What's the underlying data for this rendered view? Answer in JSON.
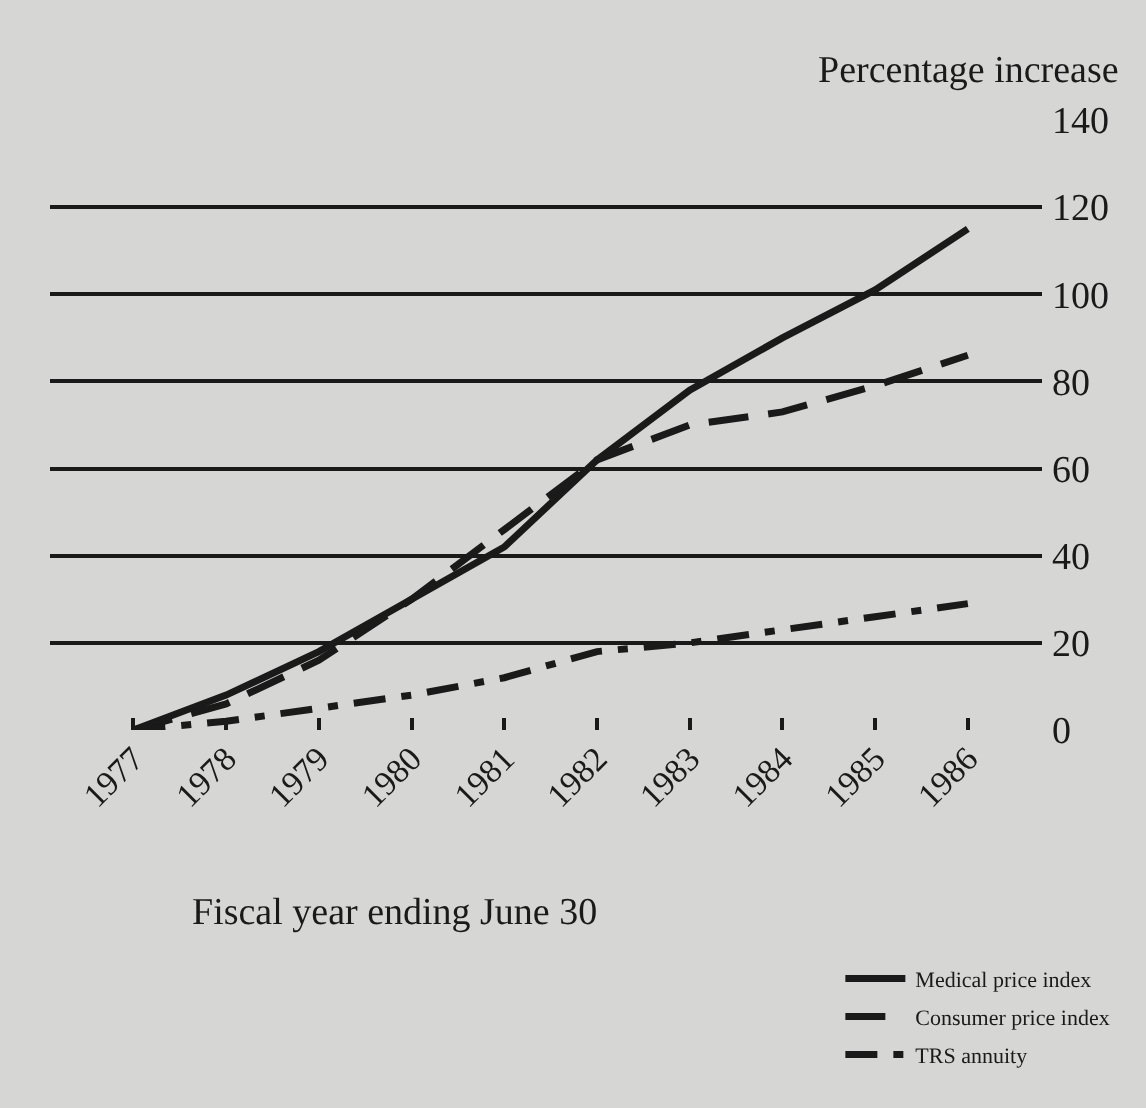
{
  "chart_data": {
    "type": "line",
    "xlabel": "Fiscal year ending June 30",
    "ylabel": "Percentage increase",
    "x": [
      1977,
      1978,
      1979,
      1980,
      1981,
      1982,
      1983,
      1984,
      1985,
      1986
    ],
    "xlim": [
      1976.1,
      1986.8
    ],
    "xticks": [
      1977,
      1978,
      1979,
      1980,
      1981,
      1982,
      1983,
      1984,
      1985,
      1986
    ],
    "ylim": [
      0,
      140
    ],
    "yticks": [
      0,
      20,
      40,
      60,
      80,
      100,
      120,
      140
    ],
    "grid": "y",
    "legend": "bottom right",
    "marker": "none",
    "series": [
      {
        "name": "Medical price index",
        "color": "#1a1a1a",
        "line_style": "solid",
        "values": [
          0,
          8,
          18,
          30,
          42,
          62,
          78,
          90,
          101,
          115
        ]
      },
      {
        "name": "Consumer price index",
        "color": "#1a1a1a",
        "line_style": "dashed",
        "values": [
          0,
          6,
          16,
          30,
          46,
          62,
          70,
          73,
          79,
          86
        ]
      },
      {
        "name": "TRS annuity",
        "color": "#1a1a1a",
        "line_style": "dashdot",
        "values": [
          0,
          2,
          5,
          8,
          12,
          18,
          20,
          23,
          26,
          29
        ]
      }
    ]
  }
}
